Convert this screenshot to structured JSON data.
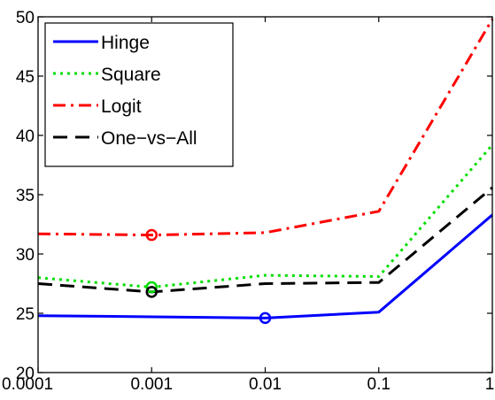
{
  "chart_data": {
    "type": "line",
    "x_scale": "log",
    "x": [
      0.0001,
      0.001,
      0.01,
      0.1,
      1
    ],
    "x_tick_labels": [
      "0.0001",
      "0.001",
      "0.01",
      "0.1",
      "1"
    ],
    "ylim": [
      20,
      50
    ],
    "y_ticks": [
      20,
      25,
      30,
      35,
      40,
      45,
      50
    ],
    "y_tick_labels": [
      "20",
      "25",
      "30",
      "35",
      "40",
      "45",
      "50"
    ],
    "grid": false,
    "legend_position": "top-left",
    "series": [
      {
        "name": "Hinge",
        "values": [
          24.8,
          24.7,
          24.6,
          25.1,
          33.3
        ],
        "color": "#0000ff",
        "dash": "solid",
        "marker_index": 2
      },
      {
        "name": "Square",
        "values": [
          28.0,
          27.2,
          28.2,
          28.1,
          39.2
        ],
        "color": "#00dd00",
        "dash": "dot",
        "marker_index": 1
      },
      {
        "name": "Logit",
        "values": [
          31.7,
          31.6,
          31.8,
          33.6,
          49.8
        ],
        "color": "#ff0000",
        "dash": "dashdot",
        "marker_index": 1
      },
      {
        "name": "One−vs−All",
        "values": [
          27.5,
          26.8,
          27.5,
          27.6,
          35.6
        ],
        "color": "#000000",
        "dash": "dash",
        "marker_index": 1
      }
    ]
  }
}
